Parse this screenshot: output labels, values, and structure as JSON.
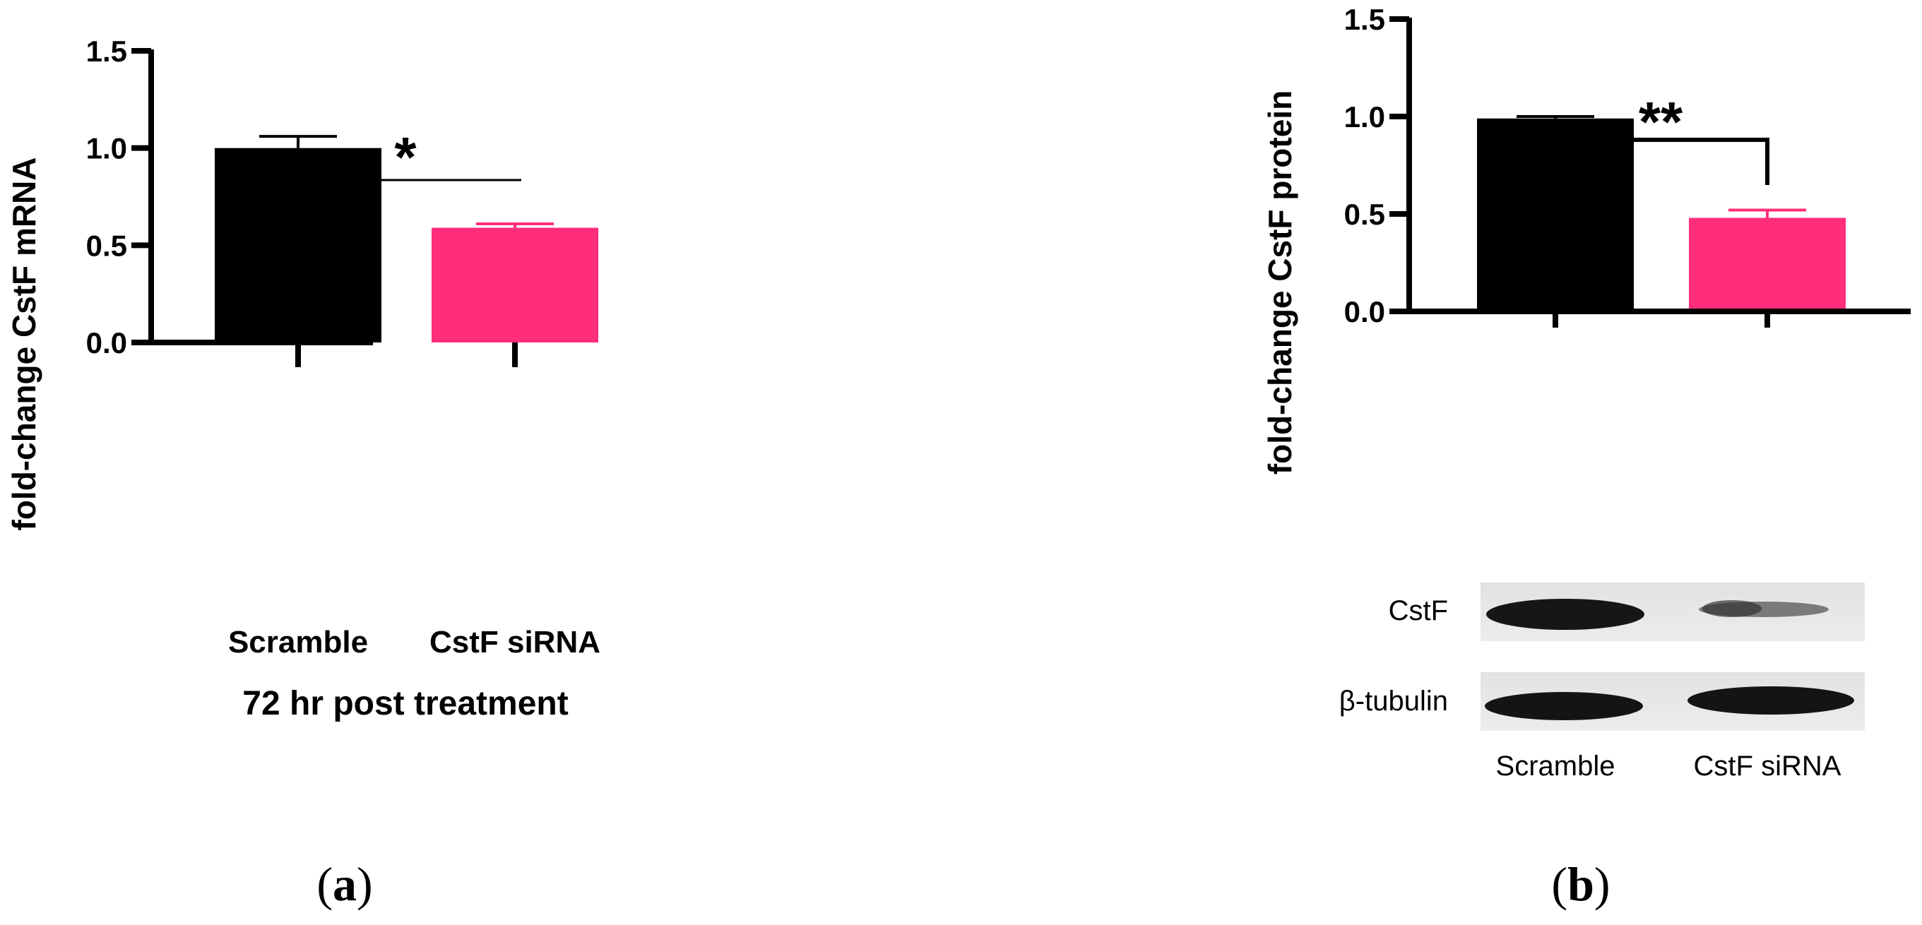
{
  "panels": {
    "a": {
      "label_open": "(",
      "label_letter": "a",
      "label_close": ")"
    },
    "b": {
      "label_open": "(",
      "label_letter": "b",
      "label_close": ")"
    }
  },
  "chart_data": [
    {
      "type": "bar",
      "categories": [
        "Scramble",
        "CstF siRNA"
      ],
      "values": [
        1.0,
        0.59
      ],
      "errors": [
        0.06,
        0.02
      ],
      "colors": [
        "#000000",
        "#ff2d7a"
      ],
      "ylabel": "fold-change CstF mRNA",
      "xlabel": "72 hr post treatment",
      "ylim": [
        0,
        1.5
      ],
      "yticks": [
        "0.0",
        "0.5",
        "1.0",
        "1.5"
      ],
      "significance": "*"
    },
    {
      "type": "bar",
      "categories": [
        "Scramble",
        "CstF siRNA"
      ],
      "values": [
        0.99,
        0.48
      ],
      "errors": [
        0.01,
        0.04
      ],
      "colors": [
        "#000000",
        "#ff2d7a"
      ],
      "ylabel": "fold-change CstF protein",
      "ylim": [
        0,
        1.5
      ],
      "yticks": [
        "0.0",
        "0.5",
        "1.0",
        "1.5"
      ],
      "significance": "**",
      "blot": {
        "rows": [
          "CstF",
          "β-tubulin"
        ],
        "lanes": [
          "Scramble",
          "CstF siRNA"
        ]
      }
    }
  ]
}
